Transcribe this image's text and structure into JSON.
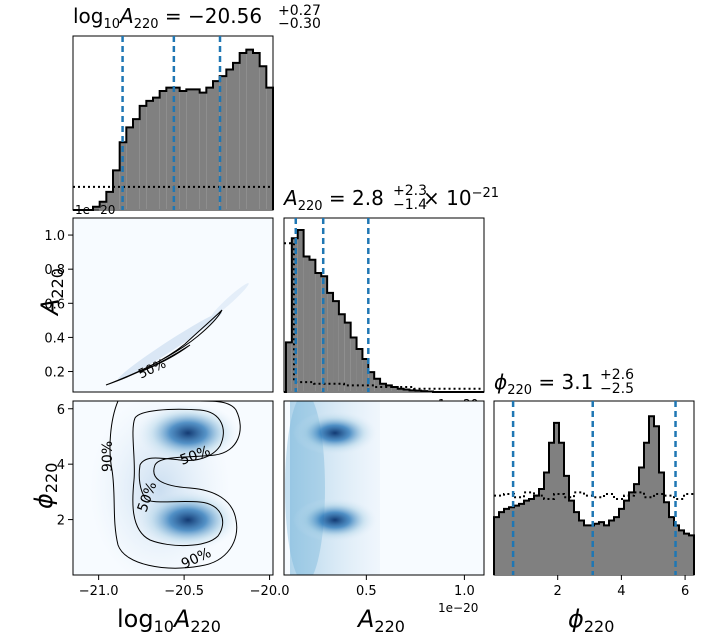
{
  "panels": {
    "logA_hist": {
      "title_main": "log",
      "title_sub10": "10",
      "title_A": "A",
      "title_sub": "220",
      "title_val": " = −20.56",
      "title_sup": "+0.27",
      "title_inf": "−0.30"
    },
    "A_hist": {
      "title_A": "A",
      "title_sub": "220",
      "title_val": " = 2.8",
      "title_sup": "+2.3",
      "title_inf": "−1.4",
      "title_tail": " × 10",
      "title_exp": "−21"
    },
    "phi_hist": {
      "title_phi": "ϕ",
      "title_sub": "220",
      "title_val": " = 3.1",
      "title_sup": "+2.6",
      "title_inf": "−2.5"
    },
    "offset_label": "1e−20"
  },
  "axes": {
    "x_logA_label": {
      "log": "log",
      "sub10": "10",
      "A": "A",
      "sub": "220"
    },
    "x_A_label": {
      "A": "A",
      "sub": "220"
    },
    "x_phi_label": {
      "phi": "ϕ",
      "sub": "220"
    },
    "y_A_label": {
      "A": "A",
      "sub": "220"
    },
    "y_phi_label": {
      "phi": "ϕ",
      "sub": "220"
    }
  },
  "contour_labels": {
    "p50": "50%",
    "p90": "90%"
  },
  "chart_data": {
    "type": "corner",
    "parameters": [
      "log10A220",
      "A220",
      "phi220"
    ],
    "ranges": {
      "log10A220": [
        -21.15,
        -19.98
      ],
      "A220": [
        8e-22,
        1.1e-20
      ],
      "phi220": [
        0.0,
        6.28
      ]
    },
    "ticks": {
      "log10A220": [
        -21.0,
        -20.5,
        -20.0
      ],
      "log10A220_labels": [
        "−21.0",
        "−20.5",
        "−20.0"
      ],
      "A220": [
        0.2,
        0.4,
        0.6,
        0.8,
        1.0
      ],
      "A220_labels": [
        "0.2",
        "0.4",
        "0.6",
        "0.8",
        "1.0"
      ],
      "A220_xticks": [
        0.5,
        1.0
      ],
      "A220_xlabels": [
        "0.5",
        "1.0"
      ],
      "phi220": [
        2,
        4,
        6
      ],
      "phi220_labels": [
        "2",
        "4",
        "6"
      ]
    },
    "quantiles": {
      "log10A220": [
        -20.86,
        -20.56,
        -20.29
      ],
      "A220": [
        1.4e-21,
        2.8e-21,
        5.1e-21
      ],
      "phi220": [
        0.6,
        3.1,
        5.7
      ]
    },
    "histograms": {
      "log10A220": {
        "x_start": -21.15,
        "bin_width": 0.039,
        "counts": [
          0,
          0,
          0,
          0.02,
          0.05,
          0.11,
          0.24,
          0.41,
          0.5,
          0.55,
          0.63,
          0.66,
          0.68,
          0.72,
          0.74,
          0.74,
          0.72,
          0.73,
          0.73,
          0.71,
          0.74,
          0.78,
          0.81,
          0.85,
          0.89,
          0.95,
          0.97,
          0.95,
          0.87,
          0.74,
          0.56,
          0.36,
          0.21,
          0.11,
          0.06,
          0.03,
          0.01,
          0,
          0,
          0
        ],
        "prior": [
          0.14,
          0.14,
          0.14,
          0.14,
          0.14,
          0.14,
          0.14,
          0.14,
          0.14,
          0.14,
          0.14,
          0.14,
          0.14,
          0.14,
          0.14,
          0.14,
          0.14,
          0.14,
          0.14,
          0.14,
          0.14,
          0.14,
          0.14,
          0.14,
          0.14,
          0.14,
          0.14,
          0.14,
          0.14,
          0.14
        ]
      },
      "A220": {
        "x_start": 0.0,
        "bin_width": 0.03,
        "counts": [
          0,
          0,
          0,
          0.3,
          0.93,
          0.98,
          0.82,
          0.8,
          0.72,
          0.7,
          0.6,
          0.55,
          0.47,
          0.42,
          0.33,
          0.26,
          0.2,
          0.12,
          0.08,
          0.05,
          0.04,
          0.03,
          0.02,
          0.015,
          0.01,
          0.008,
          0.005,
          0.003,
          0,
          0,
          0,
          0,
          0,
          0,
          0,
          0,
          0
        ],
        "prior": [
          0.9,
          0.06,
          0.06,
          0.05,
          0.05,
          0.05,
          0.04,
          0.04,
          0.04,
          0.03,
          0.03,
          0.03,
          0.03,
          0.02,
          0.02,
          0.02,
          0.02,
          0.02,
          0.02,
          0.02
        ]
      },
      "phi220": {
        "x_start": 0.0,
        "bin_width": 0.157,
        "counts": [
          0.35,
          0.38,
          0.4,
          0.41,
          0.42,
          0.43,
          0.45,
          0.46,
          0.48,
          0.52,
          0.62,
          0.8,
          0.92,
          0.8,
          0.6,
          0.45,
          0.38,
          0.33,
          0.3,
          0.3,
          0.31,
          0.32,
          0.3,
          0.33,
          0.35,
          0.4,
          0.45,
          0.5,
          0.55,
          0.65,
          0.8,
          0.96,
          0.9,
          0.62,
          0.44,
          0.35,
          0.3,
          0.27,
          0.25,
          0.24
        ],
        "prior": [
          0.48,
          0.49,
          0.47,
          0.5,
          0.48,
          0.46,
          0.49,
          0.47,
          0.5,
          0.48,
          0.47,
          0.49,
          0.46,
          0.48,
          0.5,
          0.47,
          0.49,
          0.48,
          0.46,
          0.49
        ]
      }
    },
    "density_2d": {
      "A_vs_logA": "narrow rising curve",
      "phi_vs_logA": "two blobs at phi≈2 and phi≈5.1",
      "phi_vs_A": "two blobs at phi≈2 and phi≈5.1"
    },
    "contour_levels": [
      "50%",
      "90%"
    ]
  }
}
